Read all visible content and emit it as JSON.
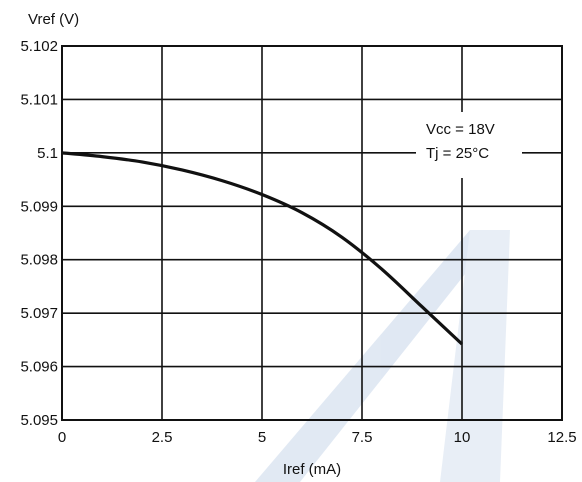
{
  "chart_data": {
    "type": "line",
    "ylabel": "Vref (V)",
    "xlabel": "Iref (mA)",
    "xlim": [
      0,
      12.5
    ],
    "ylim": [
      5.095,
      5.102
    ],
    "xticks": [
      "0",
      "2.5",
      "5",
      "7.5",
      "10",
      "12.5"
    ],
    "yticks": [
      "5.102",
      "5.101",
      "5.1",
      "5.099",
      "5.098",
      "5.097",
      "5.096",
      "5.095"
    ],
    "grid": true,
    "annotations": [
      "Vcc = 18V",
      "Tj = 25°C"
    ],
    "series": [
      {
        "x": [
          0,
          1,
          2,
          3,
          4,
          5,
          6,
          7,
          8,
          9,
          10
        ],
        "y": [
          5.1,
          5.09993,
          5.09983,
          5.09968,
          5.09948,
          5.09922,
          5.09888,
          5.09842,
          5.09782,
          5.09712,
          5.09642
        ],
        "color": "#111111"
      }
    ],
    "colors": {
      "line": "#111111",
      "grid": "#111111",
      "watermark": "#c8d7ea"
    }
  }
}
